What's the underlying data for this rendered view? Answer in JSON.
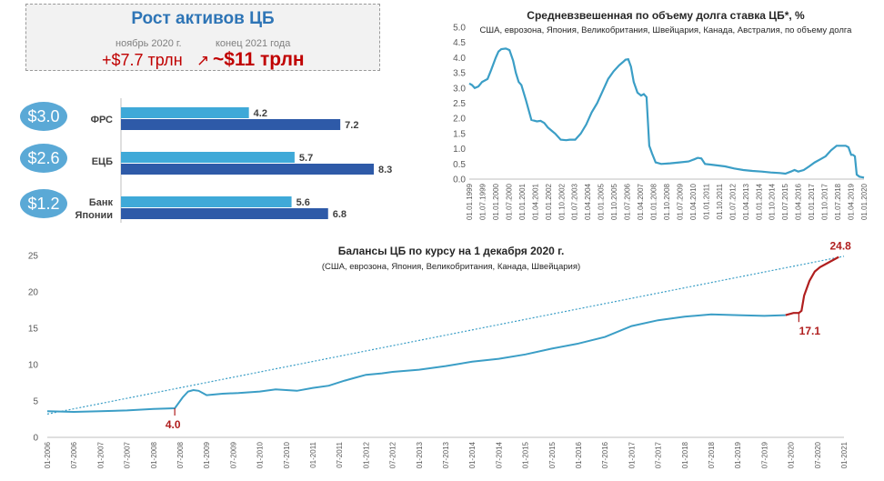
{
  "summary": {
    "title": "Рост активов ЦБ",
    "col1_label": "ноябрь 2020 г.",
    "col2_label": "конец 2021 года",
    "col1_value": "+$7.7 трлн",
    "arrow_symbol": "↗",
    "col2_value": "~$11 трлн"
  },
  "colors": {
    "light_bar": "#3fa9d8",
    "dark_bar": "#2e5aa8",
    "line": "#3b9ec6",
    "trend": "#3b9ec6",
    "highlight": "#b01e1e",
    "accent_title": "#2e75b6",
    "pill": "#5aa9d6"
  },
  "chart_data": [
    {
      "type": "bar",
      "orientation": "horizontal",
      "categories": [
        "ФРС",
        "ЕЦБ",
        "Банк Японии"
      ],
      "series": [
        {
          "values": [
            4.2,
            5.7,
            5.6
          ]
        },
        {
          "values": [
            7.2,
            8.3,
            6.8
          ]
        }
      ],
      "data_labels": [
        "4.2",
        "7.2",
        "5.7",
        "8.3",
        "5.6",
        "6.8"
      ],
      "growth_badges": [
        "$3.0",
        "$2.6",
        "$1.2"
      ]
    },
    {
      "type": "line",
      "title": "Средневзвешенная по объему долга ставка ЦБ*, %",
      "subtitle": "США, еврозона, Япония, Великобритания, Швейцария, Канада, Австралия, по объему долга",
      "ylim": [
        0,
        5
      ],
      "y_ticks": [
        "0.0",
        "0.5",
        "1.0",
        "1.5",
        "2.0",
        "2.5",
        "3.0",
        "3.5",
        "4.0",
        "4.5",
        "5.0"
      ],
      "x_ticks": [
        "01.01.1999",
        "01.07.1999",
        "01.01.2000",
        "01.07.2000",
        "01.01.2001",
        "01.04.2001",
        "01.01.2002",
        "01.10.2002",
        "01.07.2003",
        "01.04.2004",
        "01.01.2005",
        "01.10.2005",
        "01.07.2006",
        "01.04.2007",
        "01.01.2008",
        "01.10.2008",
        "01.07.2009",
        "01.04.2010",
        "01.01.2011",
        "01.10.2011",
        "01.07.2012",
        "01.04.2013",
        "01.01.2014",
        "01.10.2014",
        "01.07.2015",
        "01.04.2016",
        "01.01.2017",
        "01.10.2017",
        "01.07.2018",
        "01.04.2019",
        "01.01.2020"
      ],
      "grid": false,
      "x": [
        1999.0,
        1999.15,
        1999.3,
        1999.5,
        1999.7,
        2000.0,
        2000.2,
        2000.45,
        2000.6,
        2000.75,
        2001.0,
        2001.2,
        2001.4,
        2001.55,
        2001.7,
        2001.85,
        2002.1,
        2002.4,
        2002.7,
        2002.9,
        2003.1,
        2003.3,
        2003.5,
        2003.7,
        2004.0,
        2004.3,
        2004.5,
        2004.8,
        2005.1,
        2005.4,
        2005.7,
        2006.0,
        2006.3,
        2006.6,
        2006.9,
        2007.2,
        2007.4,
        2007.55,
        2007.7,
        2007.85,
        2008.0,
        2008.2,
        2008.4,
        2008.55,
        2008.7,
        2008.85,
        2009.0,
        2009.2,
        2009.5,
        2010.0,
        2010.5,
        2011.0,
        2011.3,
        2011.5,
        2011.7,
        2011.9,
        2012.2,
        2012.6,
        2013.0,
        2013.5,
        2014.0,
        2014.5,
        2015.0,
        2015.5,
        2016.0,
        2016.3,
        2016.6,
        2016.8,
        2017.0,
        2017.3,
        2017.6,
        2017.9,
        2018.2,
        2018.5,
        2018.8,
        2019.1,
        2019.4,
        2019.6,
        2019.75,
        2019.9,
        2020.0,
        2020.1,
        2020.2,
        2020.35,
        2020.6
      ],
      "y": [
        3.15,
        3.1,
        3.0,
        3.05,
        3.2,
        3.3,
        3.6,
        4.0,
        4.2,
        4.28,
        4.3,
        4.25,
        3.9,
        3.5,
        3.2,
        3.1,
        2.6,
        1.95,
        1.9,
        1.92,
        1.85,
        1.7,
        1.6,
        1.5,
        1.3,
        1.28,
        1.3,
        1.3,
        1.5,
        1.8,
        2.2,
        2.5,
        2.9,
        3.3,
        3.55,
        3.75,
        3.85,
        3.93,
        3.95,
        3.7,
        3.2,
        2.85,
        2.75,
        2.8,
        2.7,
        1.1,
        0.85,
        0.55,
        0.5,
        0.52,
        0.55,
        0.58,
        0.65,
        0.7,
        0.68,
        0.5,
        0.48,
        0.45,
        0.42,
        0.35,
        0.3,
        0.27,
        0.25,
        0.22,
        0.2,
        0.18,
        0.25,
        0.3,
        0.25,
        0.3,
        0.42,
        0.55,
        0.65,
        0.75,
        0.95,
        1.1,
        1.1,
        1.1,
        1.05,
        0.8,
        0.8,
        0.75,
        0.15,
        0.08,
        0.05
      ]
    },
    {
      "type": "line",
      "title": "Балансы ЦБ по курсу на 1 декабря 2020 г.",
      "subtitle": "(США, еврозона, Япония, Великобритания, Канада, Швейцария)",
      "ylim": [
        0,
        25
      ],
      "y_ticks": [
        "0",
        "5",
        "10",
        "15",
        "20",
        "25"
      ],
      "x_ticks": [
        "01-2006",
        "07-2006",
        "01-2007",
        "07-2007",
        "01-2008",
        "07-2008",
        "01-2009",
        "07-2009",
        "01-2010",
        "07-2010",
        "01-2011",
        "07-2011",
        "01-2012",
        "07-2012",
        "01-2013",
        "07-2013",
        "01-2014",
        "07-2014",
        "01-2015",
        "07-2015",
        "01-2016",
        "07-2016",
        "01-2017",
        "07-2017",
        "01-2018",
        "07-2018",
        "01-2019",
        "07-2019",
        "01-2020",
        "07-2020",
        "01-2021"
      ],
      "grid": false,
      "trend_line": {
        "x": [
          2006.0,
          2021.0
        ],
        "y": [
          3.2,
          24.9
        ]
      },
      "x": [
        2006.0,
        2006.5,
        2007.0,
        2007.5,
        2008.0,
        2008.4,
        2008.55,
        2008.65,
        2008.75,
        2008.85,
        2008.95,
        2009.0,
        2009.3,
        2009.6,
        2010.0,
        2010.3,
        2010.5,
        2010.7,
        2011.0,
        2011.3,
        2011.6,
        2011.8,
        2012.0,
        2012.3,
        2012.5,
        2013.0,
        2013.5,
        2014.0,
        2014.5,
        2015.0,
        2015.5,
        2016.0,
        2016.5,
        2017.0,
        2017.5,
        2018.0,
        2018.5,
        2019.0,
        2019.5,
        2019.9
      ],
      "y": [
        3.6,
        3.5,
        3.6,
        3.7,
        3.9,
        4.0,
        5.5,
        6.3,
        6.5,
        6.4,
        6.0,
        5.8,
        6.0,
        6.1,
        6.3,
        6.6,
        6.5,
        6.4,
        6.8,
        7.1,
        7.8,
        8.2,
        8.6,
        8.8,
        9.0,
        9.3,
        9.8,
        10.4,
        10.8,
        11.4,
        12.2,
        12.9,
        13.8,
        15.3,
        16.1,
        16.6,
        16.9,
        16.8,
        16.7,
        16.8
      ],
      "highlight_segment": {
        "x": [
          2019.9,
          2020.05,
          2020.15,
          2020.2,
          2020.25,
          2020.35,
          2020.45,
          2020.55,
          2020.7,
          2020.9
        ],
        "y": [
          16.8,
          17.1,
          17.1,
          17.4,
          19.5,
          21.5,
          22.8,
          23.4,
          24.0,
          24.8
        ]
      },
      "annotations": [
        "4.0",
        "17.1",
        "24.8"
      ]
    }
  ]
}
